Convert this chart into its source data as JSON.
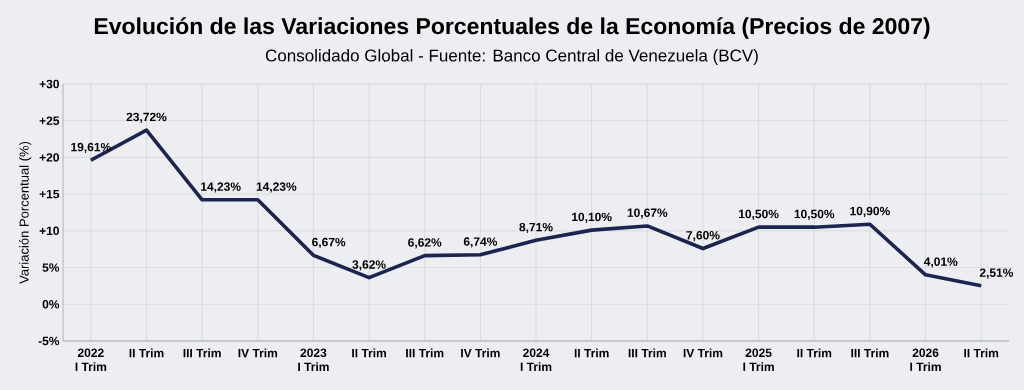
{
  "chart_data": {
    "type": "line",
    "title": "Evolución de las Variaciones Porcentuales de la Economía (Precios de 2007)",
    "subtitle": "Consolidado Global - Fuente: Banco Central de Venezuela (BCV)",
    "ylabel": "Variación Porcentual (%)",
    "categories": [
      "2022 I Trim",
      "II Trim",
      "III Trim",
      "IV Trim",
      "2023 I Trim",
      "II Trim",
      "III Trim",
      "IV Trim",
      "2024 I Trim",
      "II Trim",
      "III Trim",
      "IV Trim",
      "2025 I Trim",
      "II Trim",
      "III Trim",
      "2026 I Trim",
      "II Trim"
    ],
    "series": [
      {
        "color": "#1b2550",
        "values": [
          19.61,
          23.72,
          14.23,
          14.23,
          6.67,
          3.62,
          6.62,
          6.74,
          8.71,
          10.1,
          10.67,
          7.6,
          10.5,
          10.5,
          10.9,
          4.01,
          2.51
        ],
        "value_labels": [
          "19,61%",
          "23,72%",
          "14,23%",
          "14,23%",
          "6,67%",
          "3,62%",
          "6,62%",
          "6,74%",
          "8,71%",
          "10,10%",
          "10,67%",
          "7,60%",
          "10,50%",
          "10,50%",
          "10,90%",
          "4,01%",
          "2,51%"
        ]
      }
    ],
    "ylim": [
      -5,
      30
    ],
    "yticks": [
      {
        "value": -5,
        "label": "-5%"
      },
      {
        "value": 0,
        "label": "0%"
      },
      {
        "value": 5,
        "label": "5%"
      },
      {
        "value": 10,
        "label": "+10"
      },
      {
        "value": 15,
        "label": "+15"
      },
      {
        "value": 20,
        "label": "+20"
      },
      {
        "value": 25,
        "label": "+25"
      },
      {
        "value": 30,
        "label": "+30"
      }
    ],
    "grid": true,
    "line_style": "solid"
  }
}
